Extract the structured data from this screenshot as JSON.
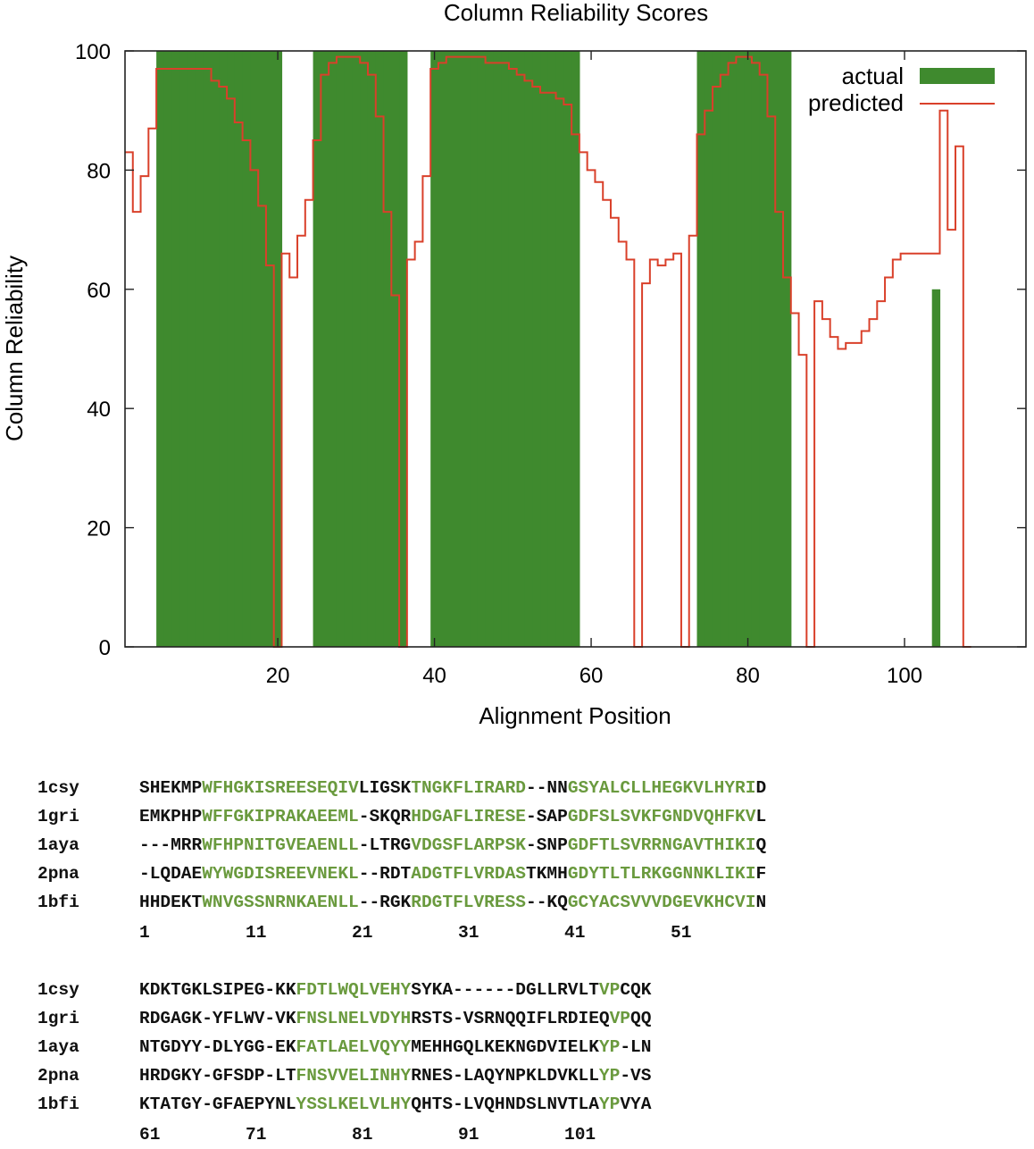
{
  "chart_data": {
    "type": "bar",
    "title": "Column Reliability Scores",
    "xlabel": "Alignment Position",
    "ylabel": "Column Reliability",
    "xlim": [
      0.5,
      115.5
    ],
    "ylim": [
      0,
      100
    ],
    "xticks": [
      20,
      40,
      60,
      80,
      100
    ],
    "yticks": [
      0,
      20,
      40,
      60,
      80,
      100
    ],
    "legend": {
      "placement": "top-right"
    },
    "series": [
      {
        "name": "actual",
        "style": "filled bars",
        "color": "#3f8a2e",
        "x": [
          5,
          6,
          7,
          8,
          9,
          10,
          11,
          12,
          13,
          14,
          15,
          16,
          17,
          18,
          19,
          20,
          25,
          26,
          27,
          28,
          29,
          30,
          31,
          32,
          33,
          34,
          35,
          36,
          40,
          41,
          42,
          43,
          44,
          45,
          46,
          47,
          48,
          49,
          50,
          51,
          52,
          53,
          54,
          55,
          56,
          57,
          58,
          74,
          75,
          76,
          77,
          78,
          79,
          80,
          81,
          82,
          83,
          84,
          85,
          104
        ],
        "y": [
          100,
          100,
          100,
          100,
          100,
          100,
          100,
          100,
          100,
          100,
          100,
          100,
          100,
          100,
          100,
          100,
          100,
          100,
          100,
          100,
          100,
          100,
          100,
          100,
          100,
          100,
          100,
          100,
          100,
          100,
          100,
          100,
          100,
          100,
          100,
          100,
          100,
          100,
          100,
          100,
          100,
          100,
          100,
          100,
          100,
          100,
          100,
          100,
          100,
          100,
          100,
          100,
          100,
          100,
          100,
          100,
          100,
          100,
          100,
          60
        ]
      },
      {
        "name": "predicted",
        "style": "step line",
        "color": "#d9402a",
        "x": [
          1,
          2,
          3,
          4,
          5,
          6,
          7,
          8,
          9,
          10,
          11,
          12,
          13,
          14,
          15,
          16,
          17,
          18,
          19,
          20,
          21,
          22,
          23,
          24,
          25,
          26,
          27,
          28,
          29,
          30,
          31,
          32,
          33,
          34,
          35,
          36,
          37,
          38,
          39,
          40,
          41,
          42,
          43,
          44,
          45,
          46,
          47,
          48,
          49,
          50,
          51,
          52,
          53,
          54,
          55,
          56,
          57,
          58,
          59,
          60,
          61,
          62,
          63,
          64,
          65,
          66,
          67,
          68,
          69,
          70,
          71,
          72,
          73,
          74,
          75,
          76,
          77,
          78,
          79,
          80,
          81,
          82,
          83,
          84,
          85,
          86,
          87,
          88,
          89,
          90,
          91,
          92,
          93,
          94,
          95,
          96,
          97,
          98,
          99,
          100,
          101,
          102,
          103,
          104,
          105,
          106,
          107,
          108
        ],
        "y": [
          83,
          73,
          79,
          87,
          97,
          97,
          97,
          97,
          97,
          97,
          97,
          95,
          94,
          92,
          88,
          85,
          80,
          74,
          64,
          0,
          66,
          62,
          69,
          75,
          85,
          96,
          98,
          99,
          99,
          99,
          98,
          96,
          89,
          73,
          59,
          0,
          65,
          68,
          79,
          97,
          98,
          99,
          99,
          99,
          99,
          99,
          98,
          98,
          98,
          97,
          96,
          95,
          94,
          93,
          93,
          92,
          91,
          86,
          83,
          80,
          78,
          75,
          72,
          68,
          65,
          0,
          61,
          65,
          64,
          65,
          66,
          0,
          69,
          86,
          90,
          94,
          96,
          98,
          99,
          99,
          98,
          96,
          89,
          73,
          62,
          56,
          49,
          0,
          58,
          55,
          52,
          50,
          51,
          51,
          53,
          55,
          58,
          62,
          65,
          66,
          66,
          66,
          66,
          66,
          90,
          70,
          84,
          0
        ]
      }
    ]
  },
  "alignment": {
    "blocks": [
      {
        "rows": [
          {
            "name": "1csy",
            "segments": [
              {
                "text": "SHEKMP",
                "g": false
              },
              {
                "text": "WFHGKISREESEQIV",
                "g": true
              },
              {
                "text": "LIGSK",
                "g": false
              },
              {
                "text": "TNGKFLIRARD",
                "g": true
              },
              {
                "text": "--NN",
                "g": false
              },
              {
                "text": "GSYALCLLHEGKVLHYRI",
                "g": true
              },
              {
                "text": "D",
                "g": false
              }
            ]
          },
          {
            "name": "1gri",
            "segments": [
              {
                "text": "EMKPHP",
                "g": false
              },
              {
                "text": "WFFGKIPRAKAEEML",
                "g": true
              },
              {
                "text": "-SKQR",
                "g": false
              },
              {
                "text": "HDGAFLIRESE",
                "g": true
              },
              {
                "text": "-SAP",
                "g": false
              },
              {
                "text": "GDFSLSVKFGNDVQHFKV",
                "g": true
              },
              {
                "text": "L",
                "g": false
              }
            ]
          },
          {
            "name": "1aya",
            "segments": [
              {
                "text": "---MRR",
                "g": false
              },
              {
                "text": "WFHPNITGVEAENLL",
                "g": true
              },
              {
                "text": "-LTRG",
                "g": false
              },
              {
                "text": "VDGSFLARPSK",
                "g": true
              },
              {
                "text": "-SNP",
                "g": false
              },
              {
                "text": "GDFTLSVRRNGAVTHIKI",
                "g": true
              },
              {
                "text": "Q",
                "g": false
              }
            ]
          },
          {
            "name": "2pna",
            "segments": [
              {
                "text": "-LQDAE",
                "g": false
              },
              {
                "text": "WYWGDISREEVNEKL",
                "g": true
              },
              {
                "text": "--RDT",
                "g": false
              },
              {
                "text": "ADGTFLVRDAS",
                "g": true
              },
              {
                "text": "TKMH",
                "g": false
              },
              {
                "text": "GDYTLTLRKGGNNKLIKI",
                "g": true
              },
              {
                "text": "F",
                "g": false
              }
            ]
          },
          {
            "name": "1bfi",
            "segments": [
              {
                "text": "HHDEKT",
                "g": false
              },
              {
                "text": "WNVGSSNRNKAENLL",
                "g": true
              },
              {
                "text": "--RGK",
                "g": false
              },
              {
                "text": "RDGTFLVRESS",
                "g": true
              },
              {
                "text": "--KQ",
                "g": false
              },
              {
                "text": "GCYACSVVVDGEVKHCVI",
                "g": true
              },
              {
                "text": "N",
                "g": false
              }
            ]
          }
        ],
        "numbers": [
          "1",
          "11",
          "21",
          "31",
          "41",
          "51"
        ]
      },
      {
        "rows": [
          {
            "name": "1csy",
            "segments": [
              {
                "text": "KDKTGKLSIPEG-KK",
                "g": false
              },
              {
                "text": "FDTLWQLVEHY",
                "g": true
              },
              {
                "text": "SYKA------DGLLRVLT",
                "g": false
              },
              {
                "text": "VP",
                "g": true
              },
              {
                "text": "CQK",
                "g": false
              }
            ]
          },
          {
            "name": "1gri",
            "segments": [
              {
                "text": "RDGAGK-YFLWV-VK",
                "g": false
              },
              {
                "text": "FNSLNELVDYH",
                "g": true
              },
              {
                "text": "RSTS-VSRNQQIFLRDIEQ",
                "g": false
              },
              {
                "text": "VP",
                "g": true
              },
              {
                "text": "QQ",
                "g": false
              }
            ]
          },
          {
            "name": "1aya",
            "segments": [
              {
                "text": "NTGDYY-DLYGG-EK",
                "g": false
              },
              {
                "text": "FATLAELVQYY",
                "g": true
              },
              {
                "text": "MEHHGQLKEKNGDVIELK",
                "g": false
              },
              {
                "text": "YP",
                "g": true
              },
              {
                "text": "-LN",
                "g": false
              }
            ]
          },
          {
            "name": "2pna",
            "segments": [
              {
                "text": "HRDGKY-GFSDP-LT",
                "g": false
              },
              {
                "text": "FNSVVELINHY",
                "g": true
              },
              {
                "text": "RNES-LAQYNPKLDVKLL",
                "g": false
              },
              {
                "text": "YP",
                "g": true
              },
              {
                "text": "-VS",
                "g": false
              }
            ]
          },
          {
            "name": "1bfi",
            "segments": [
              {
                "text": "KTATGY-GFAEPYNL",
                "g": false
              },
              {
                "text": "YSSLKELVLHY",
                "g": true
              },
              {
                "text": "QHTS-LVQHNDSLNVTLA",
                "g": false
              },
              {
                "text": "YP",
                "g": true
              },
              {
                "text": "VYA",
                "g": false
              }
            ]
          }
        ],
        "numbers": [
          "61",
          "71",
          "81",
          "91",
          "101"
        ]
      }
    ]
  }
}
